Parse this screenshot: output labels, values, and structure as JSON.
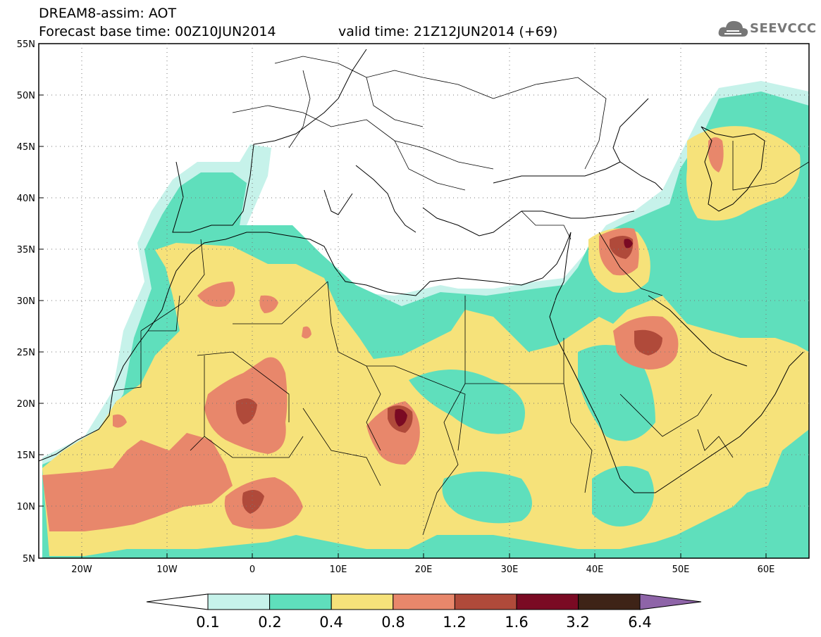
{
  "header": {
    "title_line1": "DREAM8-assim: AOT",
    "base_time": "Forecast base time: 00Z10JUN2014",
    "valid_time": "valid time: 21Z12JUN2014 (+69)",
    "logo_text": "SEEVCCC"
  },
  "axes": {
    "lat_labels": [
      "55N",
      "50N",
      "45N",
      "40N",
      "35N",
      "30N",
      "25N",
      "20N",
      "15N",
      "10N",
      "5N"
    ],
    "lon_labels": [
      "20W",
      "10W",
      "0",
      "10E",
      "20E",
      "30E",
      "40E",
      "50E",
      "60E"
    ],
    "lon_range": [
      -25,
      65
    ],
    "lat_range": [
      5,
      55
    ]
  },
  "colorbar": {
    "labels": [
      "0.1",
      "0.2",
      "0.4",
      "0.8",
      "1.2",
      "1.6",
      "3.2",
      "6.4"
    ],
    "colors": [
      "#c6f2ea",
      "#5fdfbc",
      "#f6e27a",
      "#e8876b",
      "#b04a3a",
      "#7a0a23",
      "#3e2317",
      "#8e64a8"
    ]
  }
}
